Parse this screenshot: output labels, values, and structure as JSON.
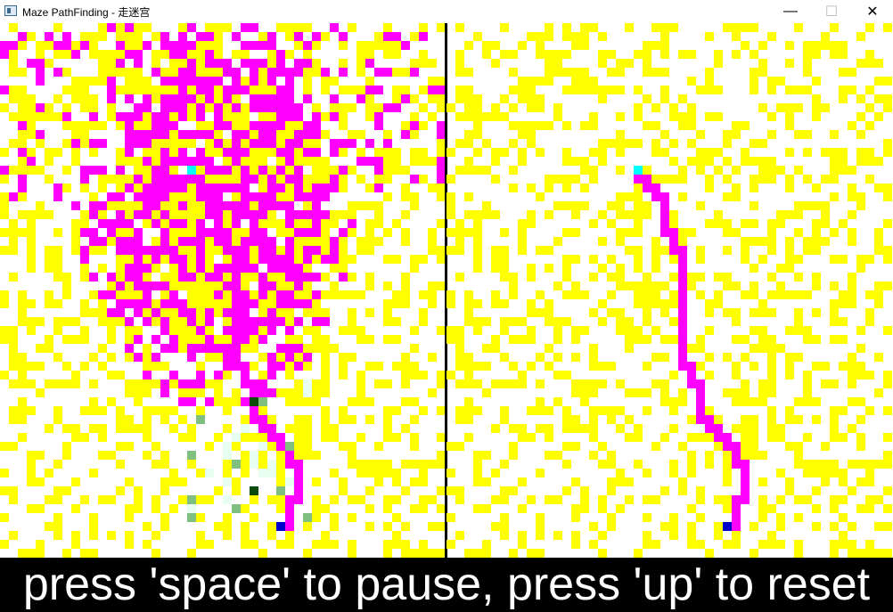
{
  "window": {
    "title": "Maze PathFinding - 走迷宫",
    "controls": {
      "minimize": "—",
      "maximize": "☐",
      "close": "✕"
    }
  },
  "colors": {
    "wall": "#ffff00",
    "visited": "#ff00ff",
    "path": "#ff00ff",
    "open": "#ffffff",
    "start": "#00ffff",
    "goal": "#0000cc",
    "frontier_light": "#e6fff0",
    "frontier_mid": "#7fbf7f",
    "frontier_dark": "#0a4a0a",
    "divider": "#000000",
    "footer_bg": "#000000",
    "footer_text": "#ffffff"
  },
  "footer": {
    "hint": "press 'space' to pause, press 'up' to reset"
  }
}
